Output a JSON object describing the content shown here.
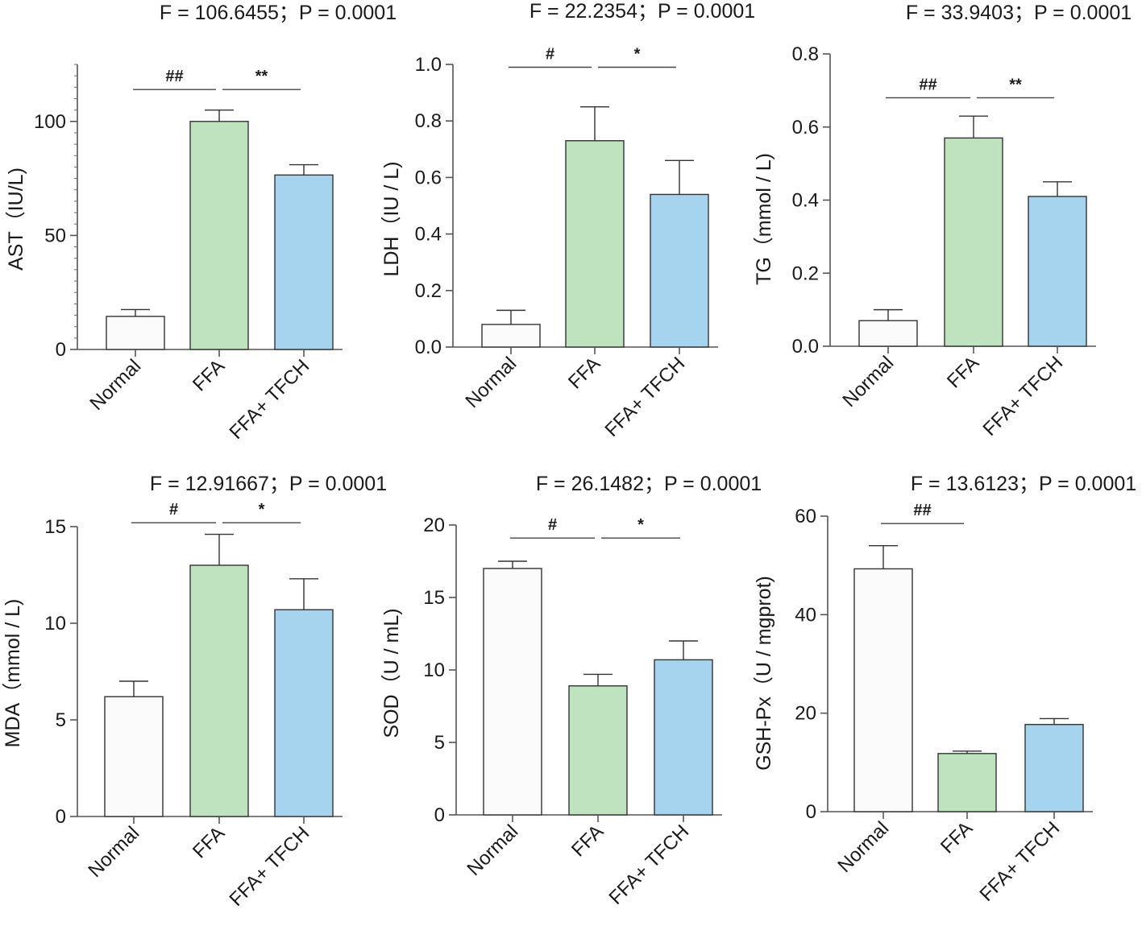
{
  "colors": {
    "Normal": "#fbfbfb",
    "FFA": "#bfe3bf",
    "FFA+ TFCH": "#a6d4ee",
    "stroke": "#333333"
  },
  "chart_data": [
    {
      "type": "bar",
      "stat": "F = 106.6455；P = 0.0001",
      "ylabel": "AST（IU/L)",
      "categories": [
        "Normal",
        "FFA",
        "FFA+ TFCH"
      ],
      "values": [
        14.5,
        100,
        76.5
      ],
      "errors": [
        3,
        5,
        4.5
      ],
      "ylim": [
        0,
        125
      ],
      "yticks": [
        "0",
        "50",
        "100"
      ],
      "tick_values": [
        0,
        50,
        100
      ],
      "minor_step": 5,
      "significance": [
        {
          "label": "##",
          "from": 0,
          "to": 1,
          "y": 114
        },
        {
          "label": "**",
          "from": 1,
          "to": 2,
          "y": 114
        }
      ]
    },
    {
      "type": "bar",
      "stat": "F = 22.2354；P = 0.0001",
      "ylabel": "LDH（IU / L)",
      "categories": [
        "Normal",
        "FFA",
        "FFA+ TFCH"
      ],
      "values": [
        0.08,
        0.73,
        0.54
      ],
      "errors": [
        0.05,
        0.12,
        0.12
      ],
      "ylim": [
        0,
        1.0
      ],
      "yticks": [
        "0.0",
        "0.2",
        "0.4",
        "0.6",
        "0.8",
        "1.0"
      ],
      "tick_values": [
        0,
        0.2,
        0.4,
        0.6,
        0.8,
        1.0
      ],
      "minor_step": 0,
      "significance": [
        {
          "label": "#",
          "from": 0,
          "to": 1,
          "y": 0.99
        },
        {
          "label": "*",
          "from": 1,
          "to": 2,
          "y": 0.99
        }
      ]
    },
    {
      "type": "bar",
      "stat": "F = 33.9403；P = 0.0001",
      "ylabel": "TG（mmol / L)",
      "categories": [
        "Normal",
        "FFA",
        "FFA+ TFCH"
      ],
      "values": [
        0.07,
        0.57,
        0.41
      ],
      "errors": [
        0.03,
        0.06,
        0.04
      ],
      "ylim": [
        0,
        0.8
      ],
      "yticks": [
        "0.0",
        "0.2",
        "0.4",
        "0.6",
        "0.8"
      ],
      "tick_values": [
        0,
        0.2,
        0.4,
        0.6,
        0.8
      ],
      "minor_step": 0,
      "significance": [
        {
          "label": "##",
          "from": 0,
          "to": 1,
          "y": 0.68
        },
        {
          "label": "**",
          "from": 1,
          "to": 2,
          "y": 0.68
        }
      ]
    },
    {
      "type": "bar",
      "stat": "F = 12.91667；P = 0.0001",
      "ylabel": "MDA（mmol / L)",
      "categories": [
        "Normal",
        "FFA",
        "FFA+ TFCH"
      ],
      "values": [
        6.2,
        13.0,
        10.7
      ],
      "errors": [
        0.8,
        1.6,
        1.6
      ],
      "ylim": [
        0,
        15
      ],
      "yticks": [
        "0",
        "5",
        "10",
        "15"
      ],
      "tick_values": [
        0,
        5,
        10,
        15
      ],
      "minor_step": 0,
      "significance": [
        {
          "label": "#",
          "from": 0,
          "to": 1,
          "y": 15.2
        },
        {
          "label": "*",
          "from": 1,
          "to": 2,
          "y": 15.2
        }
      ]
    },
    {
      "type": "bar",
      "stat": "F = 26.1482；P = 0.0001",
      "ylabel": "SOD（U / mL)",
      "categories": [
        "Normal",
        "FFA",
        "FFA+ TFCH"
      ],
      "values": [
        17.0,
        8.9,
        10.7
      ],
      "errors": [
        0.5,
        0.8,
        1.3
      ],
      "ylim": [
        0,
        20
      ],
      "yticks": [
        "0",
        "5",
        "10",
        "15",
        "20"
      ],
      "tick_values": [
        0,
        5,
        10,
        15,
        20
      ],
      "minor_step": 0,
      "significance": [
        {
          "label": "#",
          "from": 0,
          "to": 1,
          "y": 19.1
        },
        {
          "label": "*",
          "from": 1,
          "to": 2,
          "y": 19.1
        }
      ]
    },
    {
      "type": "bar",
      "stat": "F = 13.6123；P = 0.0001",
      "ylabel": "GSH-Px（U / mgprot)",
      "categories": [
        "Normal",
        "FFA",
        "FFA+ TFCH"
      ],
      "values": [
        49.3,
        11.8,
        17.7
      ],
      "errors": [
        4.7,
        0.5,
        1.2
      ],
      "ylim": [
        0,
        60
      ],
      "yticks": [
        "0",
        "20",
        "40",
        "60"
      ],
      "tick_values": [
        0,
        20,
        40,
        60
      ],
      "minor_step": 0,
      "significance": [
        {
          "label": "##",
          "from": 0,
          "to": 1,
          "y": 58.5
        }
      ]
    }
  ]
}
